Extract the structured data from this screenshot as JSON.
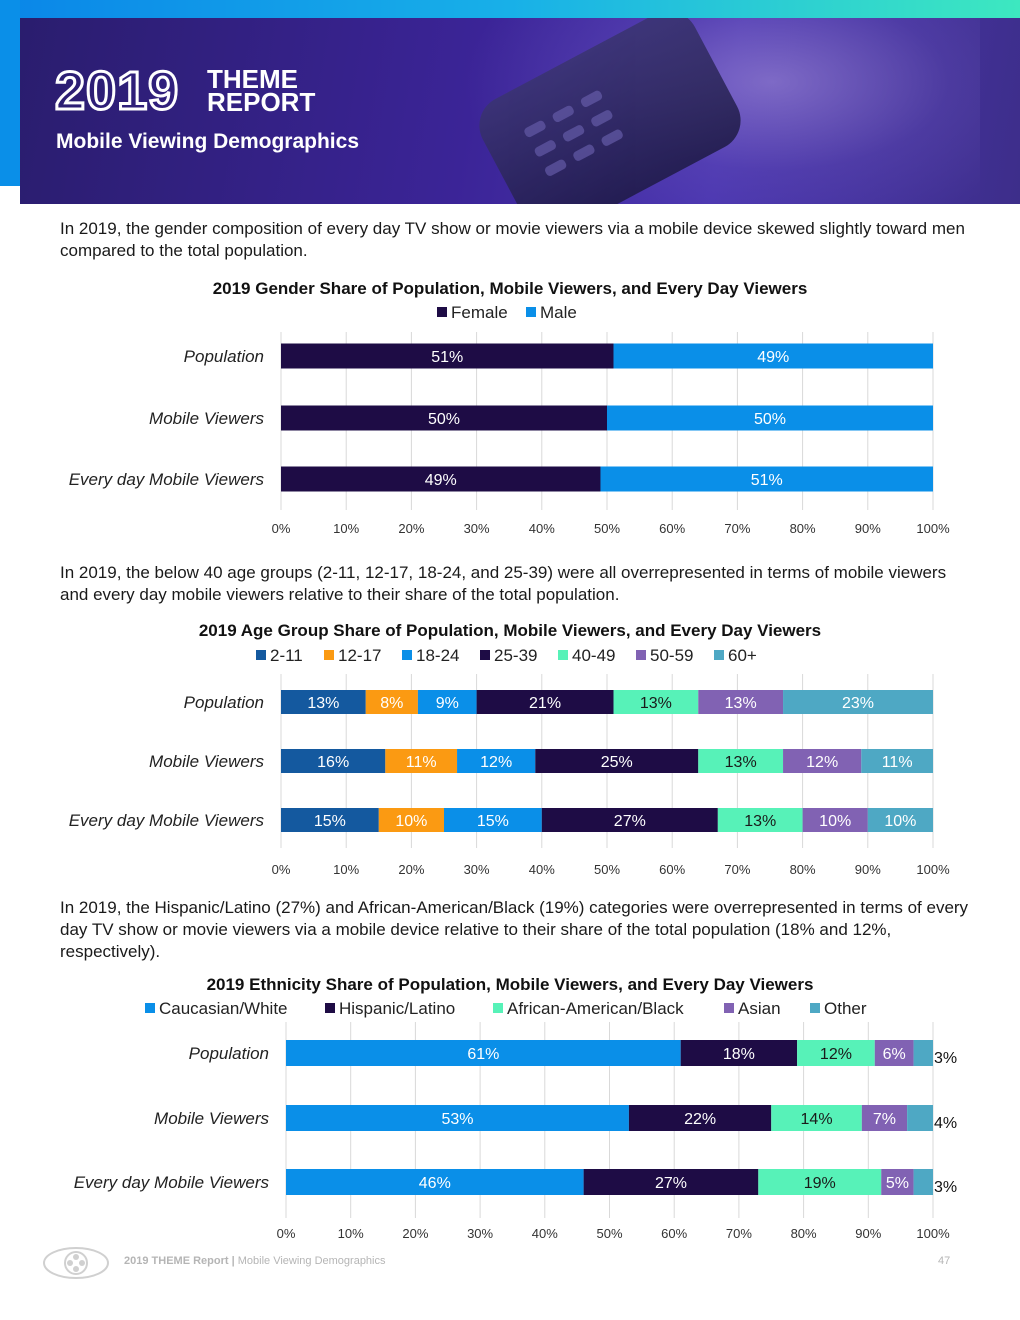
{
  "header": {
    "year": "2019",
    "theme_line1": "THEME",
    "theme_line2": "REPORT",
    "subtitle": "Mobile Viewing Demographics"
  },
  "paragraphs": [
    "In 2019, the gender composition of every day TV show or movie viewers via a mobile device skewed slightly toward men compared to the total population.",
    "In 2019, the below 40 age groups (2-11, 12-17, 18-24, and 25-39) were all overrepresented in terms of mobile viewers and every day mobile viewers relative to their share of the total population.",
    "In 2019, the Hispanic/Latino (27%) and African-American/Black (19%) categories were overrepresented in terms of every day TV show or movie viewers via a mobile device relative to their share of the total population (18% and 12%, respectively)."
  ],
  "colors": {
    "dark": "#1e0c45",
    "blue": "#0a8fe8",
    "navy": "#14599f",
    "orange": "#fb9a12",
    "mint": "#57f2b8",
    "purple": "#8162b3",
    "teal": "#4ea8c4"
  },
  "chart_data": [
    {
      "type": "bar",
      "orientation": "horizontal",
      "stacked": true,
      "title": "2019 Gender Share of Population, Mobile Viewers, and Every Day Viewers",
      "categories": [
        "Population",
        "Mobile Viewers",
        "Every day Mobile Viewers"
      ],
      "series": [
        {
          "name": "Female",
          "color": "#1e0c45",
          "values": [
            51,
            50,
            49
          ]
        },
        {
          "name": "Male",
          "color": "#0a8fe8",
          "values": [
            49,
            50,
            51
          ]
        }
      ],
      "xlim": [
        0,
        100
      ],
      "xticks": [
        "0%",
        "10%",
        "20%",
        "30%",
        "40%",
        "50%",
        "60%",
        "70%",
        "80%",
        "90%",
        "100%"
      ],
      "legend": "top",
      "grid": true
    },
    {
      "type": "bar",
      "orientation": "horizontal",
      "stacked": true,
      "title": "2019 Age Group Share of Population, Mobile Viewers, and Every Day Viewers",
      "categories": [
        "Population",
        "Mobile Viewers",
        "Every day Mobile Viewers"
      ],
      "series": [
        {
          "name": "2-11",
          "color": "#14599f",
          "values": [
            13,
            16,
            15
          ]
        },
        {
          "name": "12-17",
          "color": "#fb9a12",
          "values": [
            8,
            11,
            10
          ]
        },
        {
          "name": "18-24",
          "color": "#0a8fe8",
          "values": [
            9,
            12,
            15
          ]
        },
        {
          "name": "25-39",
          "color": "#1e0c45",
          "values": [
            21,
            25,
            27
          ]
        },
        {
          "name": "40-49",
          "color": "#57f2b8",
          "values": [
            13,
            13,
            13
          ]
        },
        {
          "name": "50-59",
          "color": "#8162b3",
          "values": [
            13,
            12,
            10
          ]
        },
        {
          "name": "60+",
          "color": "#4ea8c4",
          "values": [
            23,
            11,
            10
          ]
        }
      ],
      "xlim": [
        0,
        100
      ],
      "xticks": [
        "0%",
        "10%",
        "20%",
        "30%",
        "40%",
        "50%",
        "60%",
        "70%",
        "80%",
        "90%",
        "100%"
      ],
      "legend": "top",
      "grid": true
    },
    {
      "type": "bar",
      "orientation": "horizontal",
      "stacked": true,
      "title": "2019 Ethnicity Share of Population, Mobile Viewers, and Every Day Viewers",
      "categories": [
        "Population",
        "Mobile Viewers",
        "Every day Mobile Viewers"
      ],
      "series": [
        {
          "name": "Caucasian/White",
          "color": "#0a8fe8",
          "values": [
            61,
            53,
            46
          ]
        },
        {
          "name": "Hispanic/Latino",
          "color": "#1e0c45",
          "values": [
            18,
            22,
            27
          ]
        },
        {
          "name": "African-American/Black",
          "color": "#57f2b8",
          "values": [
            12,
            14,
            19
          ]
        },
        {
          "name": "Asian",
          "color": "#8162b3",
          "values": [
            6,
            7,
            5
          ]
        },
        {
          "name": "Other",
          "color": "#4ea8c4",
          "values": [
            3,
            4,
            3
          ]
        }
      ],
      "xlim": [
        0,
        100
      ],
      "xticks": [
        "0%",
        "10%",
        "20%",
        "30%",
        "40%",
        "50%",
        "60%",
        "70%",
        "80%",
        "90%",
        "100%"
      ],
      "legend": "top",
      "grid": true
    }
  ],
  "footer": {
    "report": "2019 THEME Report",
    "separator": "|",
    "section": "Mobile Viewing Demographics",
    "page": "47"
  }
}
